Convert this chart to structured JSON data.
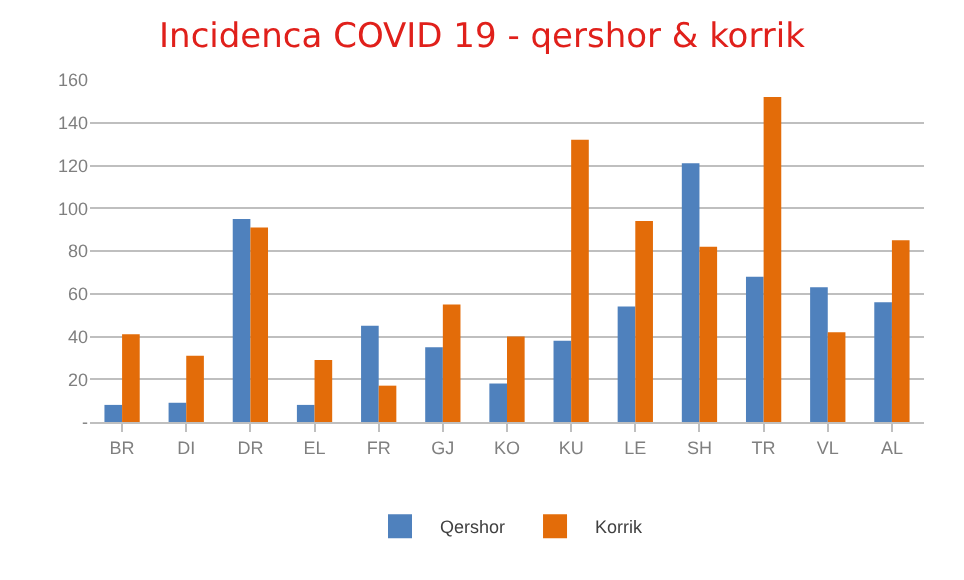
{
  "chart_data": {
    "type": "bar",
    "title": "Incidenca COVID 19 - qershor & korrik",
    "categories": [
      "BR",
      "DI",
      "DR",
      "EL",
      "FR",
      "GJ",
      "KO",
      "KU",
      "LE",
      "SH",
      "TR",
      "VL",
      "AL"
    ],
    "series": [
      {
        "name": "Qershor",
        "color": "#4f81bd",
        "values": [
          8,
          9,
          95,
          8,
          45,
          35,
          18,
          38,
          54,
          121,
          68,
          63,
          56
        ]
      },
      {
        "name": "Korrik",
        "color": "#e36c09",
        "values": [
          41,
          31,
          91,
          29,
          17,
          55,
          40,
          132,
          94,
          82,
          152,
          42,
          85
        ]
      }
    ],
    "ylim": [
      0,
      160
    ],
    "yticks": [
      {
        "value": 0,
        "label": "-"
      },
      20,
      40,
      60,
      80,
      100,
      120,
      140,
      160
    ],
    "grid": "y",
    "legend": "bottom"
  }
}
